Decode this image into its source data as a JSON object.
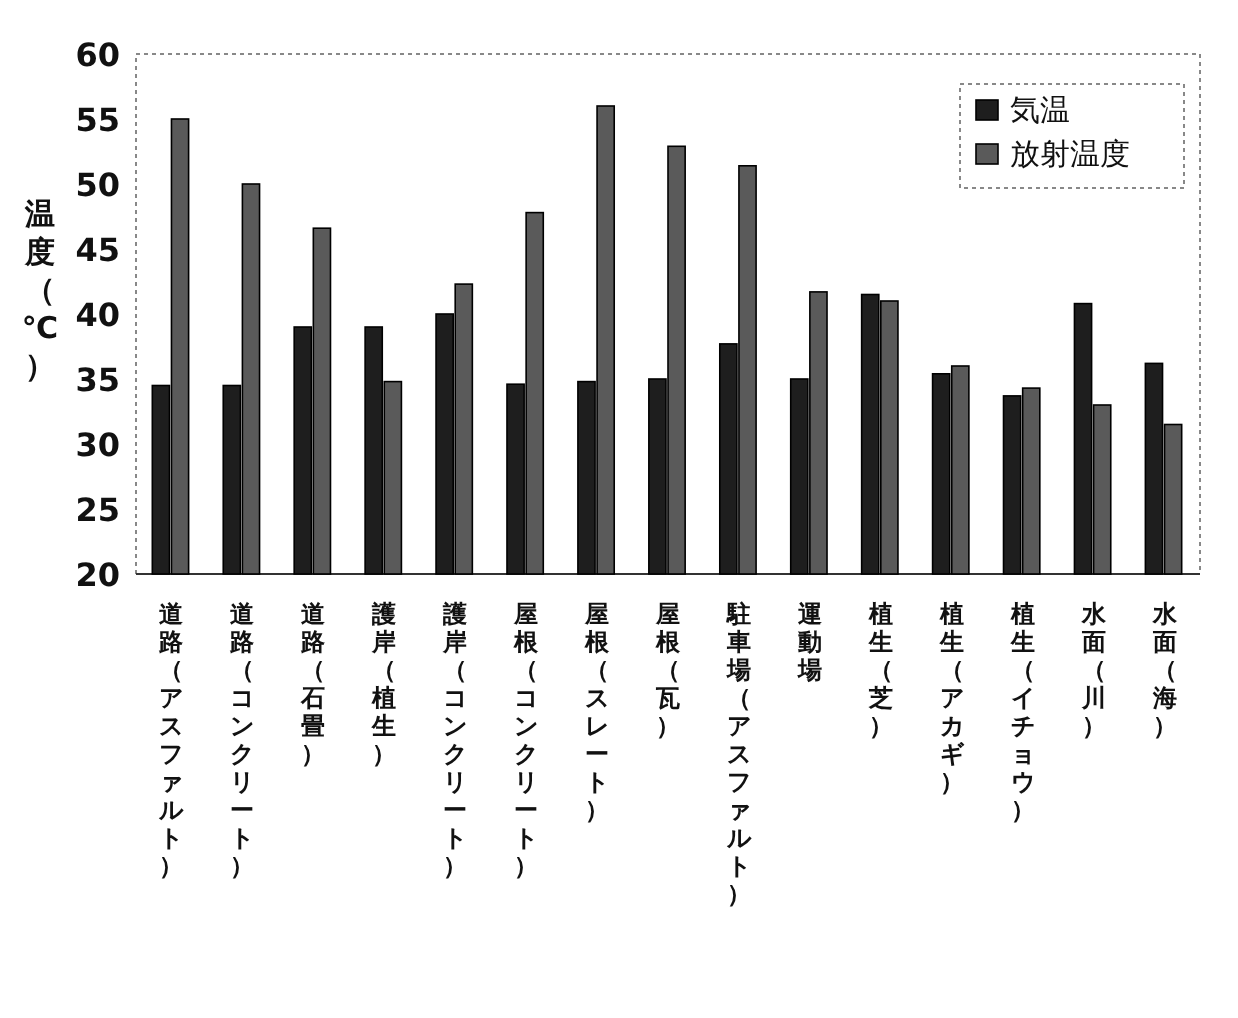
{
  "chart_data": {
    "type": "bar",
    "ylabel": "温度（℃）",
    "categories": [
      "道路（アスファルト）",
      "道路（コンクリート）",
      "道路（石畳）",
      "護岸（植生）",
      "護岸（コンクリート）",
      "屋根（コンクリート）",
      "屋根（スレート）",
      "屋根（瓦）",
      "駐車場（アスファルト）",
      "運動場",
      "植生（芝）",
      "植生（アカギ）",
      "植生（イチョウ）",
      "水面（川）",
      "水面（海）"
    ],
    "series": [
      {
        "name": "気温",
        "color": "#1e1e1e",
        "values": [
          34.5,
          34.5,
          39,
          39,
          40,
          34.6,
          34.8,
          35,
          37.7,
          35,
          41.5,
          35.4,
          33.7,
          40.8,
          36.2
        ]
      },
      {
        "name": "放射温度",
        "color": "#5a5a5a",
        "values": [
          55,
          50,
          46.6,
          34.8,
          42.3,
          47.8,
          56,
          52.9,
          51.4,
          41.7,
          41,
          36,
          34.3,
          33,
          31.5
        ]
      }
    ],
    "ylim": [
      20,
      60
    ],
    "yticks": [
      20,
      25,
      30,
      35,
      40,
      45,
      50,
      55,
      60
    ],
    "legend": "top right"
  }
}
